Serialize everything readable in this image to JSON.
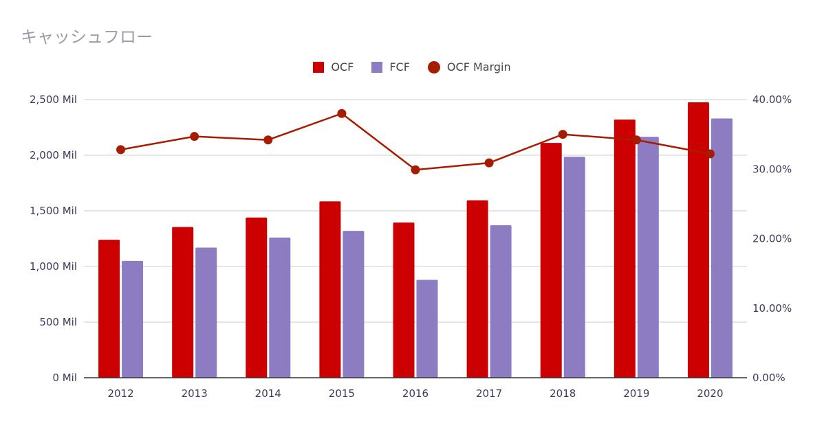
{
  "title": "キャッシュフロー",
  "legend": {
    "ocf": "OCF",
    "fcf": "FCF",
    "margin": "OCF Margin"
  },
  "colors": {
    "ocf": "#cc0000",
    "fcf": "#8e7cc3",
    "margin": "#a61c00",
    "grid": "#cccccc",
    "axis": "#333333"
  },
  "chart_data": {
    "type": "bar",
    "title": "キャッシュフロー",
    "categories": [
      "2012",
      "2013",
      "2014",
      "2015",
      "2016",
      "2017",
      "2018",
      "2019",
      "2020"
    ],
    "series": [
      {
        "name": "OCF",
        "type": "bar",
        "axis": "left",
        "values": [
          1240,
          1355,
          1440,
          1585,
          1395,
          1595,
          2110,
          2320,
          2475
        ]
      },
      {
        "name": "FCF",
        "type": "bar",
        "axis": "left",
        "values": [
          1050,
          1170,
          1260,
          1320,
          880,
          1370,
          1985,
          2165,
          2330
        ]
      },
      {
        "name": "OCF Margin",
        "type": "line",
        "axis": "right",
        "values": [
          32.8,
          34.7,
          34.2,
          38.0,
          29.9,
          30.9,
          35.0,
          34.2,
          32.2
        ]
      }
    ],
    "left_axis": {
      "min": 0,
      "max": 2500,
      "ticks": [
        "0 Mil",
        "500 Mil",
        "1,000 Mil",
        "1,500 Mil",
        "2,000 Mil",
        "2,500 Mil"
      ]
    },
    "right_axis": {
      "min": 0,
      "max": 40,
      "ticks": [
        "0.00%",
        "10.00%",
        "20.00%",
        "30.00%",
        "40.00%"
      ]
    },
    "grid": true,
    "legend_position": "top"
  }
}
